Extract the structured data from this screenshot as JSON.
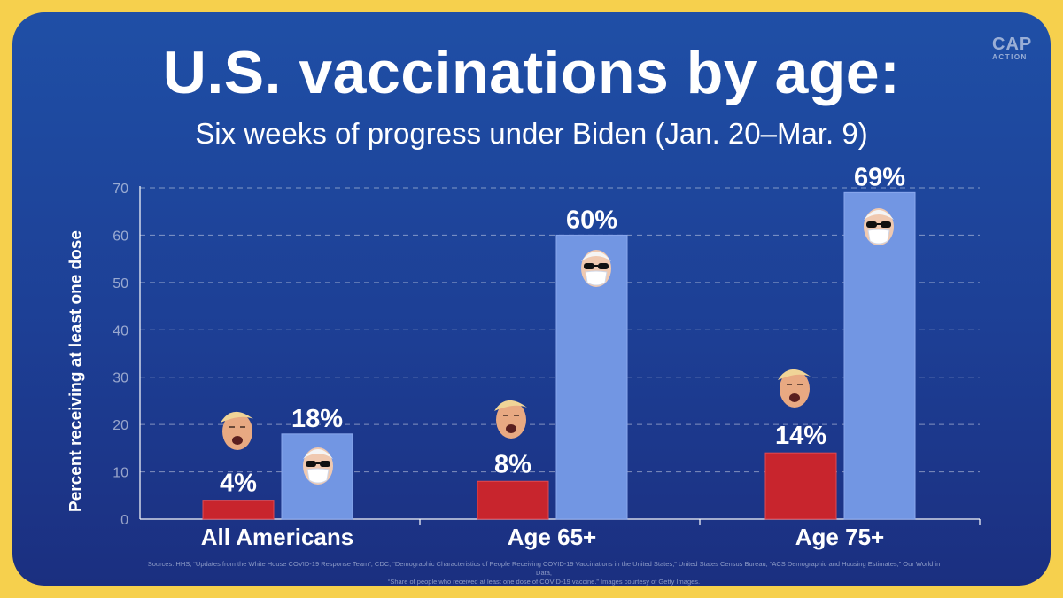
{
  "logo": {
    "line1": "CAP",
    "line2": "ACTION"
  },
  "chart_data": {
    "type": "bar",
    "title": "U.S. vaccinations by age:",
    "subtitle": "Six weeks of progress under Biden (Jan. 20–Mar. 9)",
    "xlabel": "",
    "ylabel": "Percent receiving at least one dose",
    "ylim": [
      0,
      70
    ],
    "yticks": [
      0,
      10,
      20,
      30,
      40,
      50,
      60,
      70
    ],
    "grid": true,
    "categories": [
      "All Americans",
      "Age 65+",
      "Age 75+"
    ],
    "series": [
      {
        "values": [
          4,
          8,
          14
        ],
        "labels": [
          "4%",
          "8%",
          "14%"
        ],
        "color": "#c8252d",
        "icon": "trump-face-icon"
      },
      {
        "values": [
          18,
          60,
          69
        ],
        "labels": [
          "18%",
          "60%",
          "69%"
        ],
        "color": "#7296e3",
        "icon": "biden-masked-face-icon"
      }
    ]
  },
  "sources": {
    "line1": "Sources: HHS, “Updates from the White House COVID-19 Response Team”; CDC, “Demographic Characteristics of People Receiving COVID-19 Vaccinations in the United States;” United States Census Bureau, “ACS Demographic and Housing Estimates;” Our World in Data,",
    "line2": "“Share of people who received at least one dose of COVID-19 vaccine.” Images courtesy of Getty Images."
  }
}
